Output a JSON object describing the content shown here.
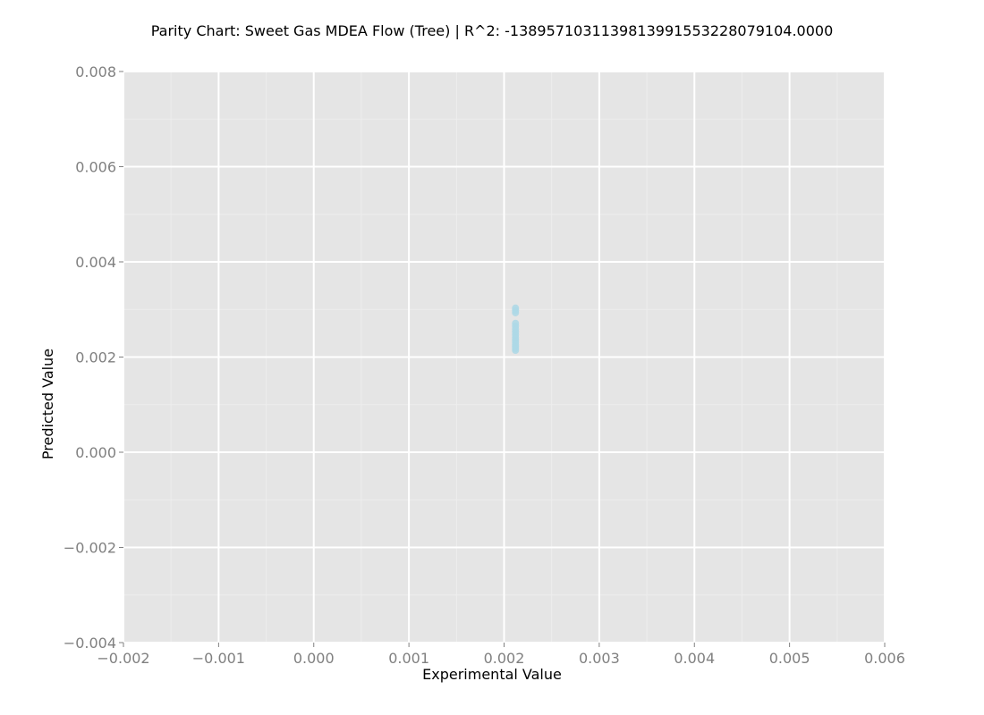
{
  "chart_data": {
    "type": "scatter",
    "title": "Parity Chart: Sweet Gas MDEA Flow (Tree) | R^2: -1389571031139813991553228079104.0000",
    "xlabel": "Experimental Value",
    "ylabel": "Predicted Value",
    "xlim": [
      -0.002,
      0.006
    ],
    "ylim": [
      -0.004,
      0.008
    ],
    "x_ticks": [
      -0.002,
      -0.001,
      0.0,
      0.001,
      0.002,
      0.003,
      0.004,
      0.005,
      0.006
    ],
    "x_tick_labels": [
      "−0.002",
      "−0.001",
      "0.000",
      "0.001",
      "0.002",
      "0.003",
      "0.004",
      "0.005",
      "0.006"
    ],
    "y_ticks": [
      -0.004,
      -0.002,
      0.0,
      0.002,
      0.004,
      0.006,
      0.008
    ],
    "y_tick_labels": [
      "−0.004",
      "−0.002",
      "0.000",
      "0.002",
      "0.004",
      "0.006",
      "0.008"
    ],
    "grid": true,
    "colors": {
      "panel_bg": "#e5e5e5",
      "major_grid": "#ffffff",
      "minor_grid": "#ededed",
      "point": "#add8e6",
      "tick_mark": "#808080"
    },
    "series": [
      {
        "points": [
          {
            "x": 0.00212,
            "y": 0.00214
          },
          {
            "x": 0.00212,
            "y": 0.00218
          },
          {
            "x": 0.00212,
            "y": 0.00222
          },
          {
            "x": 0.00212,
            "y": 0.00226
          },
          {
            "x": 0.00212,
            "y": 0.00231
          },
          {
            "x": 0.00212,
            "y": 0.00236
          },
          {
            "x": 0.00212,
            "y": 0.00241
          },
          {
            "x": 0.00212,
            "y": 0.00247
          },
          {
            "x": 0.00212,
            "y": 0.00253
          },
          {
            "x": 0.00212,
            "y": 0.00259
          },
          {
            "x": 0.00212,
            "y": 0.00265
          },
          {
            "x": 0.00212,
            "y": 0.00271
          },
          {
            "x": 0.00212,
            "y": 0.00293
          },
          {
            "x": 0.00212,
            "y": 0.00298
          },
          {
            "x": 0.00212,
            "y": 0.00303
          }
        ]
      }
    ]
  }
}
